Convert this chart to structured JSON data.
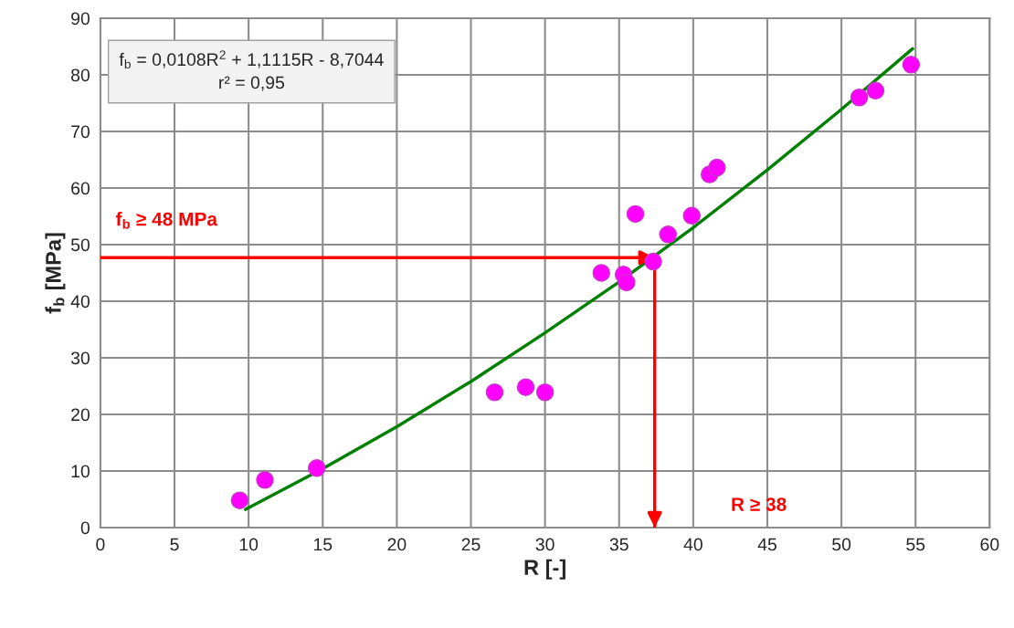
{
  "chart_data": {
    "type": "scatter",
    "xlabel": "R [-]",
    "ylabel": "f$_{b}$ [MPa]",
    "xlim": [
      0,
      60
    ],
    "xticks": [
      0,
      5,
      10,
      15,
      20,
      25,
      30,
      35,
      40,
      45,
      50,
      55,
      60
    ],
    "ylim": [
      0,
      90
    ],
    "yticks": [
      0,
      10,
      20,
      30,
      40,
      50,
      60,
      70,
      80,
      90
    ],
    "grid": true,
    "series": [
      {
        "marker": "circle",
        "color": "#ff00ff",
        "x": [
          9.4,
          11.1,
          14.6,
          26.6,
          28.7,
          30.0,
          33.8,
          35.3,
          35.5,
          36.1,
          37.3,
          38.3,
          39.9,
          41.1,
          41.6,
          51.2,
          52.3,
          54.7
        ],
        "values": [
          4.8,
          8.4,
          10.5,
          23.9,
          24.8,
          23.9,
          45.0,
          44.7,
          43.3,
          55.4,
          47.0,
          51.8,
          55.1,
          62.4,
          63.6,
          76.0,
          77.2,
          81.8
        ]
      },
      {
        "type": "line",
        "color": "#008000",
        "x": [
          9.8,
          15,
          20,
          25,
          30,
          35,
          40,
          45,
          50,
          54.8
        ],
        "values": [
          3.2,
          10.4,
          17.8,
          25.8,
          34.4,
          43.4,
          53.0,
          63.2,
          73.9,
          84.6
        ]
      }
    ],
    "ref_lines": [
      {
        "axis": "y",
        "value": 47.7,
        "label": "f$_{b}$ ≥ 48 MPa",
        "color": "#ff0000"
      },
      {
        "axis": "x",
        "value": 37.4,
        "label": "R ≥ 38",
        "color": "#ff0000"
      }
    ],
    "annotations": [
      "f$_{b}$ = 0,0108R$^{2}$ + 1,1115R - 8,7044\nr² = 0,95"
    ]
  }
}
